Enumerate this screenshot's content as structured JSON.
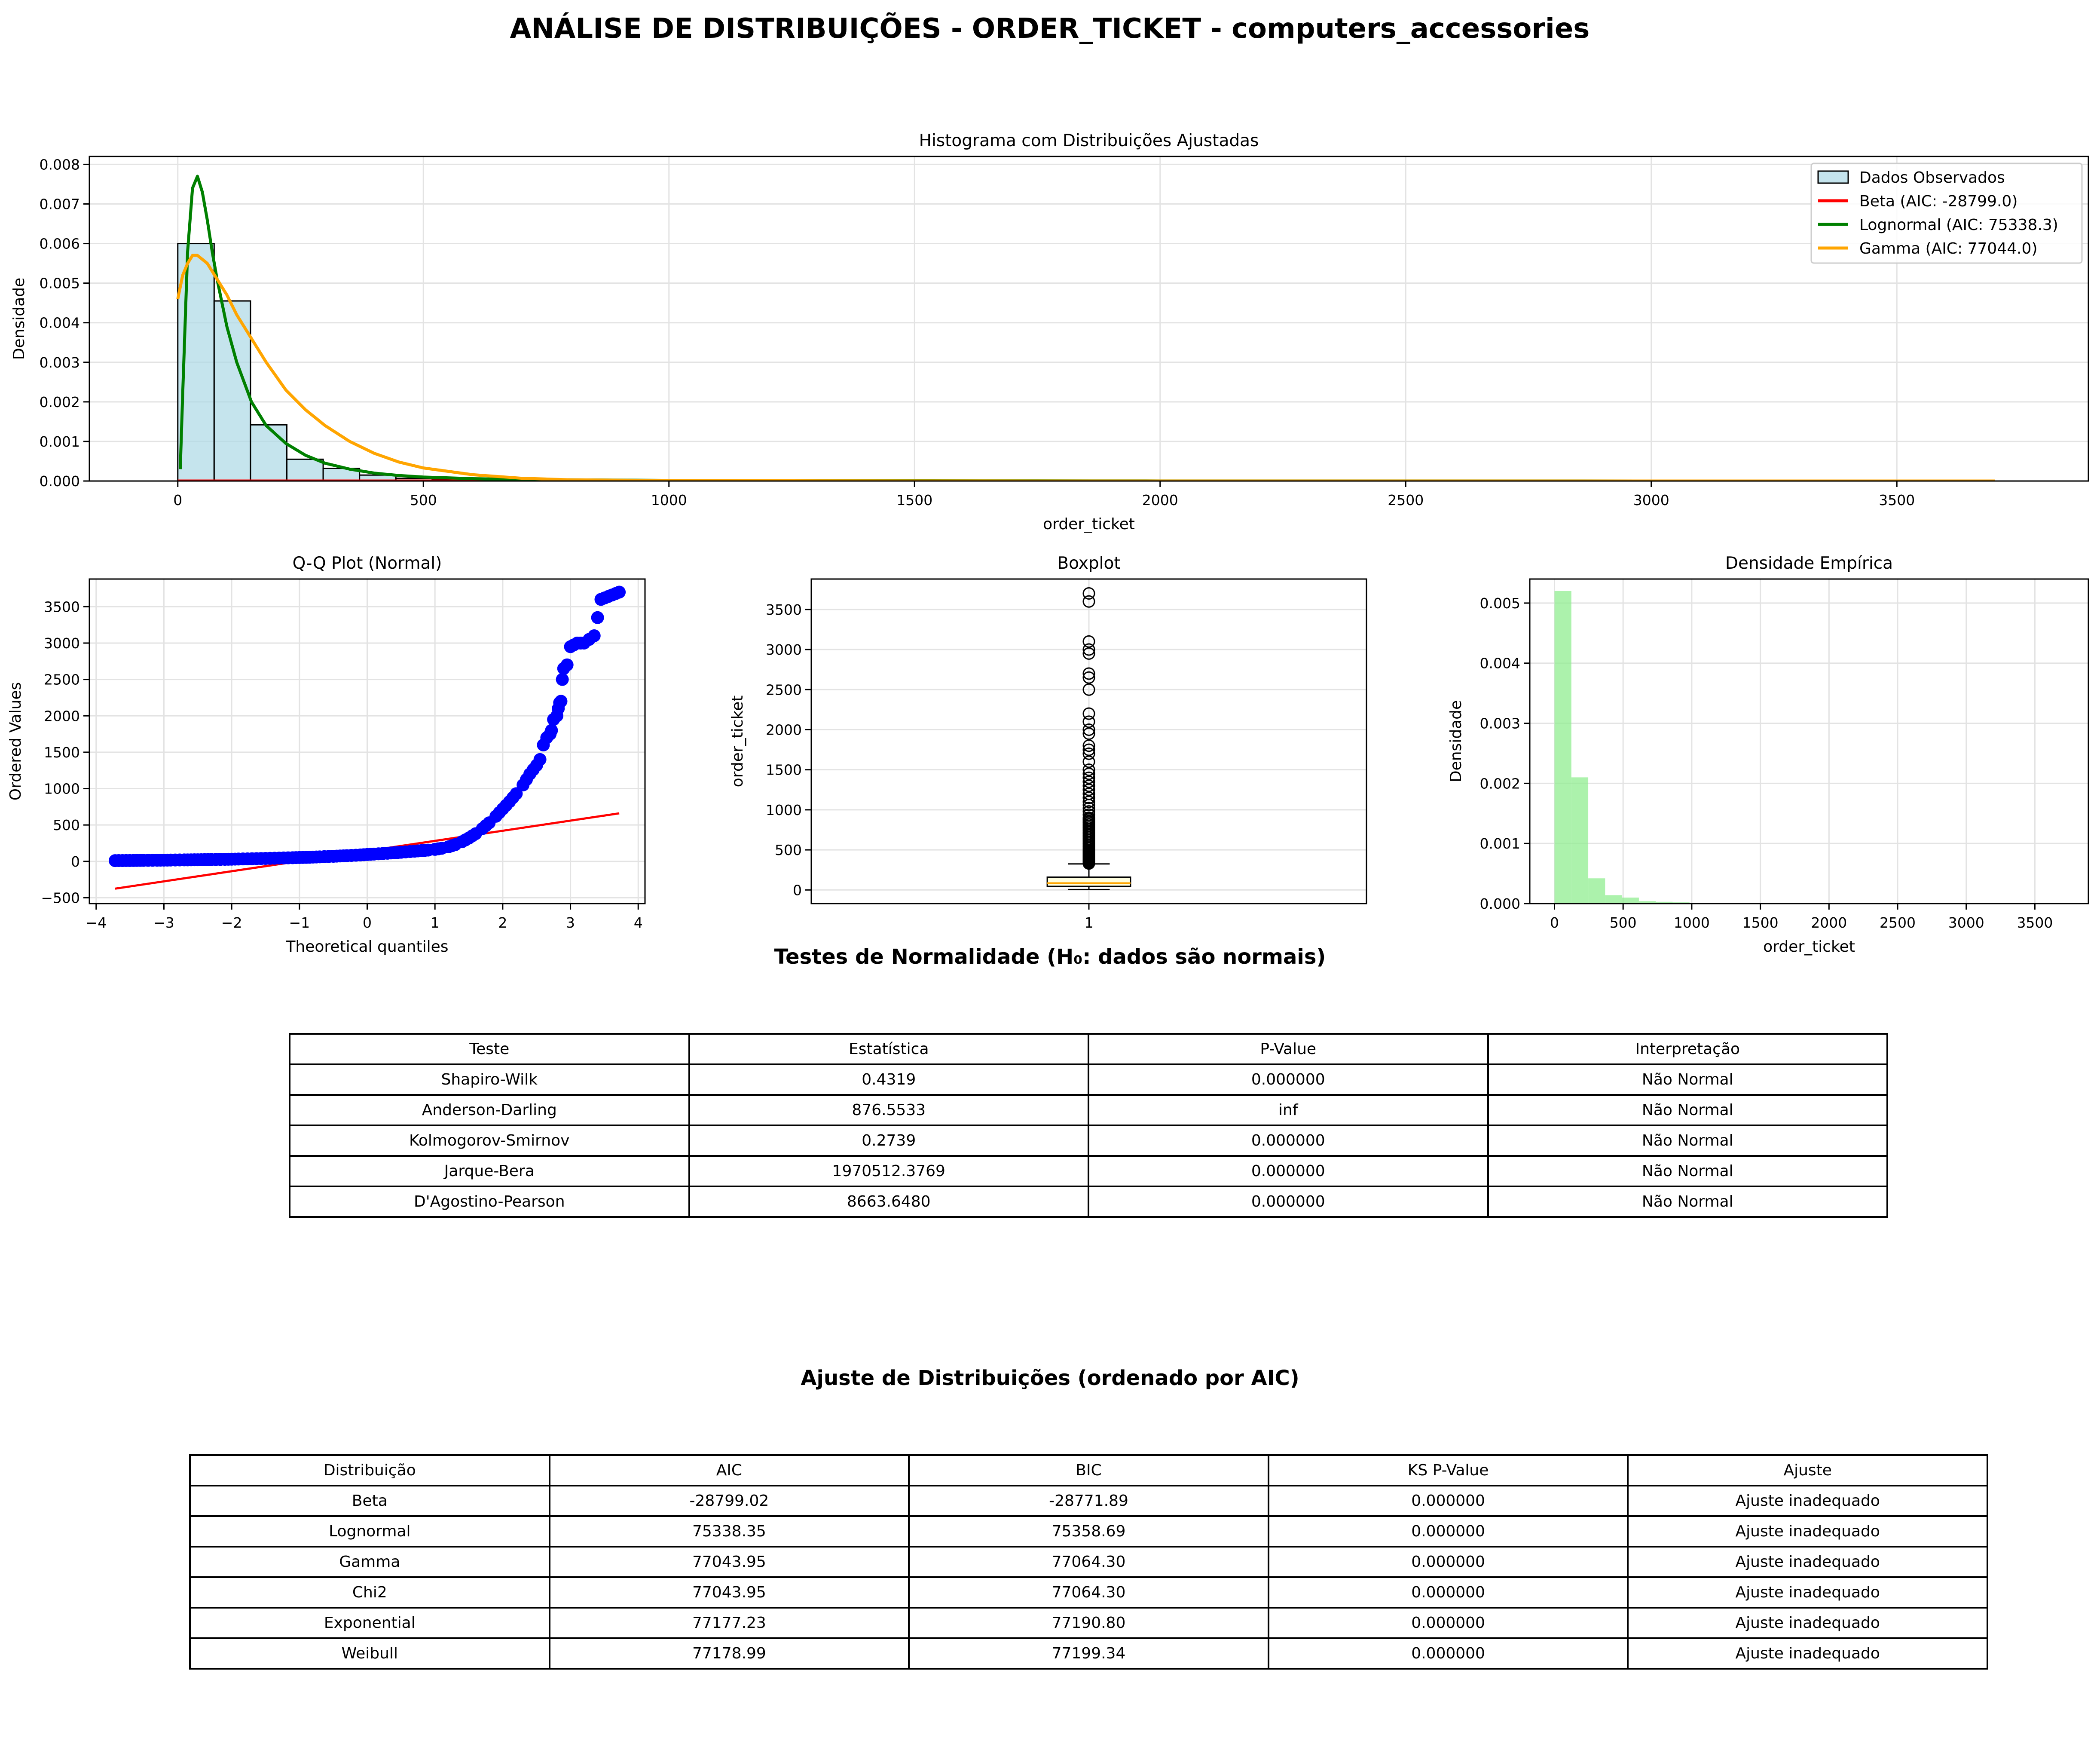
{
  "page_title": "ANÁLISE DE DISTRIBUIÇÕES - ORDER_TICKET - computers_accessories",
  "chart_data": [
    {
      "id": "hist",
      "type": "bar",
      "title": "Histograma com Distribuições Ajustadas",
      "xlabel": "order_ticket",
      "ylabel": "Densidade",
      "xlim": [
        -180,
        3890
      ],
      "ylim": [
        0,
        0.0082
      ],
      "xticks": [
        0,
        500,
        1000,
        1500,
        2000,
        2500,
        3000,
        3500
      ],
      "yticks": [
        0.0,
        0.001,
        0.002,
        0.003,
        0.004,
        0.005,
        0.006,
        0.007,
        0.008
      ],
      "ytick_decimals": 3,
      "grid": true,
      "legend_position": "upper right",
      "bin_width": 74,
      "bin_start": 0,
      "bars": [
        0.006,
        0.00455,
        0.00142,
        0.00055,
        0.00032,
        0.00015,
        7e-05,
        4e-05,
        2e-05,
        1.5e-05,
        1e-05,
        8e-06,
        6e-06,
        5e-06,
        4e-06,
        3e-06,
        3e-06,
        2e-06,
        2e-06,
        2e-06
      ],
      "bar_color": "#add8e6",
      "bar_edge": "#000000",
      "series": [
        {
          "name": "Dados Observados",
          "kind": "bar",
          "color": "#add8e6"
        },
        {
          "name": "Beta (AIC: -28799.0)",
          "kind": "line",
          "color": "#ff0000",
          "x": [
            0,
            3700
          ],
          "y": [
            0,
            0
          ]
        },
        {
          "name": "Lognormal (AIC: 75338.3)",
          "kind": "line",
          "color": "#008000",
          "x": [
            5,
            10,
            20,
            30,
            40,
            50,
            60,
            70,
            80,
            100,
            120,
            150,
            180,
            220,
            260,
            300,
            350,
            400,
            450,
            500,
            600,
            700,
            800,
            1000,
            1500,
            2000,
            3000,
            3700
          ],
          "y": [
            0.0003,
            0.0022,
            0.0058,
            0.0074,
            0.0077,
            0.0073,
            0.0066,
            0.0058,
            0.0051,
            0.0039,
            0.003,
            0.002,
            0.0014,
            0.00095,
            0.00065,
            0.00045,
            0.0003,
            0.0002,
            0.00014,
            0.0001,
            6e-05,
            4e-05,
            3e-05,
            1.5e-05,
            5e-06,
            2e-06,
            5e-07,
            2e-07
          ]
        },
        {
          "name": "Gamma (AIC: 77044.0)",
          "kind": "line",
          "color": "#ffa500",
          "x": [
            0,
            10,
            20,
            30,
            40,
            50,
            60,
            80,
            100,
            120,
            150,
            180,
            220,
            260,
            300,
            350,
            400,
            450,
            500,
            600,
            700,
            800,
            1000,
            1500,
            2000,
            3000,
            3700
          ],
          "y": [
            0.0046,
            0.0052,
            0.0055,
            0.0057,
            0.0057,
            0.0056,
            0.0055,
            0.0051,
            0.0047,
            0.0042,
            0.0036,
            0.003,
            0.0023,
            0.0018,
            0.0014,
            0.001,
            0.0007,
            0.00048,
            0.00033,
            0.00016,
            7e-05,
            3e-05,
            1e-05,
            1e-06,
            1e-07,
            0,
            0
          ]
        }
      ]
    },
    {
      "id": "qq",
      "type": "scatter",
      "title": "Q-Q Plot (Normal)",
      "xlabel": "Theoretical quantiles",
      "ylabel": "Ordered Values",
      "xlim": [
        -4.1,
        4.1
      ],
      "ylim": [
        -580,
        3880
      ],
      "xticks": [
        -4,
        -3,
        -2,
        -1,
        0,
        1,
        2,
        3,
        4
      ],
      "yticks": [
        -500,
        0,
        500,
        1000,
        1500,
        2000,
        2500,
        3000,
        3500
      ],
      "grid": true,
      "point_color": "#0000ff",
      "fit_line": {
        "color": "#ff0000",
        "x": [
          -3.72,
          3.72
        ],
        "y": [
          -375,
          660
        ]
      },
      "points_x": [
        -3.72,
        -3.45,
        -3.3,
        -3.1,
        -2.9,
        -2.7,
        -2.5,
        -2.3,
        -2.1,
        -1.9,
        -1.7,
        -1.5,
        -1.3,
        -1.1,
        -0.9,
        -0.7,
        -0.5,
        -0.3,
        -0.1,
        0.1,
        0.3,
        0.5,
        0.7,
        0.9,
        1.0,
        1.1,
        1.2,
        1.3,
        1.4,
        1.5,
        1.6,
        1.7,
        1.8,
        1.9,
        2.0,
        2.1,
        2.2,
        2.3,
        2.4,
        2.5,
        2.55,
        2.6,
        2.65,
        2.7,
        2.72,
        2.75,
        2.8,
        2.82,
        2.84,
        2.86,
        2.88,
        2.9,
        2.95,
        3.0,
        3.1,
        3.2,
        3.35,
        3.45,
        3.72
      ],
      "points_y": [
        10,
        12,
        14,
        16,
        18,
        20,
        22,
        25,
        28,
        32,
        36,
        40,
        45,
        50,
        55,
        62,
        70,
        78,
        88,
        100,
        112,
        125,
        140,
        155,
        165,
        180,
        200,
        230,
        270,
        320,
        380,
        450,
        530,
        620,
        720,
        820,
        930,
        1050,
        1200,
        1320,
        1400,
        1600,
        1700,
        1750,
        1800,
        1950,
        2000,
        2100,
        2180,
        2200,
        2500,
        2650,
        2700,
        2950,
        3000,
        3000,
        3100,
        3600,
        3700
      ]
    },
    {
      "id": "box",
      "type": "box",
      "title": "Boxplot",
      "ylabel": "order_ticket",
      "xlabel": "",
      "xlim": [
        0.5,
        1.5
      ],
      "ylim": [
        -170,
        3880
      ],
      "xticks": [
        1
      ],
      "yticks": [
        0,
        500,
        1000,
        1500,
        2000,
        2500,
        3000,
        3500
      ],
      "grid": true,
      "whisker_low": 5,
      "q1": 45,
      "median": 85,
      "q3": 160,
      "whisker_high": 325,
      "box_color": "#ffffe0",
      "median_color": "#ffa500",
      "outliers": [
        330,
        340,
        350,
        360,
        370,
        380,
        390,
        400,
        410,
        420,
        430,
        440,
        450,
        460,
        470,
        480,
        490,
        500,
        520,
        540,
        560,
        580,
        600,
        620,
        640,
        660,
        680,
        700,
        720,
        740,
        760,
        780,
        800,
        820,
        840,
        860,
        880,
        900,
        940,
        980,
        1020,
        1060,
        1100,
        1150,
        1200,
        1250,
        1300,
        1350,
        1400,
        1450,
        1500,
        1600,
        1700,
        1750,
        1800,
        1950,
        2000,
        2100,
        2200,
        2500,
        2650,
        2700,
        2950,
        3000,
        3100,
        3600,
        3700
      ]
    },
    {
      "id": "dens",
      "type": "bar",
      "title": "Densidade Empírica",
      "xlabel": "order_ticket",
      "ylabel": "Densidade",
      "xlim": [
        -180,
        3890
      ],
      "ylim": [
        0,
        0.0054
      ],
      "xticks": [
        0,
        500,
        1000,
        1500,
        2000,
        2500,
        3000,
        3500
      ],
      "yticks": [
        0.0,
        0.001,
        0.002,
        0.003,
        0.004,
        0.005
      ],
      "ytick_decimals": 3,
      "grid": true,
      "bin_width": 123,
      "bin_start": 0,
      "bars": [
        0.0052,
        0.0021,
        0.00042,
        0.00014,
        0.0001,
        4e-05,
        3e-05,
        2e-05,
        1e-05,
        8e-06,
        6e-06,
        5e-06,
        4e-06,
        3e-06,
        3e-06,
        2e-06,
        2e-06,
        2e-06,
        2e-06,
        1e-06,
        1e-06,
        1e-06,
        1e-06,
        1e-06,
        1e-06,
        1e-06,
        1e-06,
        1e-06,
        1e-06,
        1e-06
      ],
      "bar_color": "#90ee90"
    }
  ],
  "normality": {
    "title": "Testes de Normalidade (H₀: dados são normais)",
    "headers": [
      "Teste",
      "Estatística",
      "P-Value",
      "Interpretação"
    ],
    "rows": [
      [
        "Shapiro-Wilk",
        "0.4319",
        "0.000000",
        "Não Normal"
      ],
      [
        "Anderson-Darling",
        "876.5533",
        "inf",
        "Não Normal"
      ],
      [
        "Kolmogorov-Smirnov",
        "0.2739",
        "0.000000",
        "Não Normal"
      ],
      [
        "Jarque-Bera",
        "1970512.3769",
        "0.000000",
        "Não Normal"
      ],
      [
        "D'Agostino-Pearson",
        "8663.6480",
        "0.000000",
        "Não Normal"
      ]
    ]
  },
  "fits": {
    "title": "Ajuste de Distribuições (ordenado por AIC)",
    "headers": [
      "Distribuição",
      "AIC",
      "BIC",
      "KS P-Value",
      "Ajuste"
    ],
    "rows": [
      [
        "Beta",
        "-28799.02",
        "-28771.89",
        "0.000000",
        "Ajuste inadequado"
      ],
      [
        "Lognormal",
        "75338.35",
        "75358.69",
        "0.000000",
        "Ajuste inadequado"
      ],
      [
        "Gamma",
        "77043.95",
        "77064.30",
        "0.000000",
        "Ajuste inadequado"
      ],
      [
        "Chi2",
        "77043.95",
        "77064.30",
        "0.000000",
        "Ajuste inadequado"
      ],
      [
        "Exponential",
        "77177.23",
        "77190.80",
        "0.000000",
        "Ajuste inadequado"
      ],
      [
        "Weibull",
        "77178.99",
        "77199.34",
        "0.000000",
        "Ajuste inadequado"
      ]
    ]
  }
}
